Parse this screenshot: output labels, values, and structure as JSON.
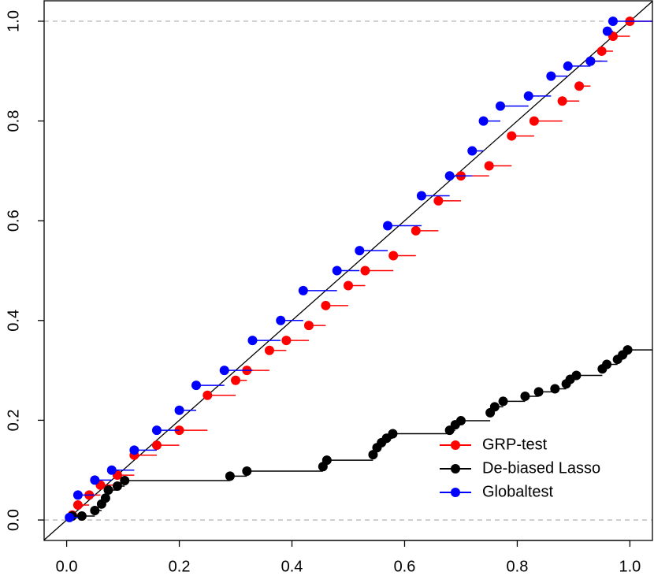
{
  "chart_data": {
    "type": "step",
    "xlim": [
      -0.04,
      1.04
    ],
    "ylim": [
      -0.041,
      1.041
    ],
    "xticks": [
      {
        "value": 0,
        "label": "0.0"
      },
      {
        "value": 0.2,
        "label": "0.2"
      },
      {
        "value": 0.4,
        "label": "0.4"
      },
      {
        "value": 0.6,
        "label": "0.6"
      },
      {
        "value": 0.8,
        "label": "0.8"
      },
      {
        "value": 1,
        "label": "1.0"
      }
    ],
    "yticks": [
      {
        "value": 0,
        "label": "0.0"
      },
      {
        "value": 0.2,
        "label": "0.2"
      },
      {
        "value": 0.4,
        "label": "0.4"
      },
      {
        "value": 0.6,
        "label": "0.6"
      },
      {
        "value": 0.8,
        "label": "0.8"
      },
      {
        "value": 1,
        "label": "1.0"
      }
    ],
    "legend": "bottom-right",
    "series": [
      {
        "name": "GRP-test",
        "color": "#ff0000",
        "x": [
          0.01,
          0.02,
          0.04,
          0.06,
          0.09,
          0.12,
          0.16,
          0.2,
          0.25,
          0.3,
          0.32,
          0.36,
          0.39,
          0.43,
          0.46,
          0.5,
          0.53,
          0.58,
          0.62,
          0.66,
          0.7,
          0.75,
          0.79,
          0.83,
          0.88,
          0.91,
          0.93,
          0.95,
          0.97,
          1.0
        ],
        "values": [
          0.01,
          0.03,
          0.05,
          0.07,
          0.09,
          0.13,
          0.15,
          0.18,
          0.25,
          0.28,
          0.3,
          0.34,
          0.36,
          0.39,
          0.43,
          0.47,
          0.5,
          0.53,
          0.58,
          0.64,
          0.69,
          0.71,
          0.77,
          0.8,
          0.84,
          0.87,
          0.92,
          0.94,
          0.97,
          1.0
        ]
      },
      {
        "name": "De-biased Lasso",
        "color": "#000000",
        "x": [
          0.01,
          0.027,
          0.05,
          0.062,
          0.069,
          0.074,
          0.09,
          0.103,
          0.29,
          0.32,
          0.455,
          0.462,
          0.544,
          0.551,
          0.559,
          0.568,
          0.579,
          0.68,
          0.69,
          0.7,
          0.752,
          0.76,
          0.775,
          0.814,
          0.838,
          0.867,
          0.887,
          0.894,
          0.905,
          0.951,
          0.959,
          0.978,
          0.987,
          0.996
        ],
        "values": [
          0.008,
          0.008,
          0.019,
          0.032,
          0.044,
          0.06,
          0.068,
          0.079,
          0.088,
          0.098,
          0.107,
          0.12,
          0.131,
          0.145,
          0.155,
          0.164,
          0.173,
          0.18,
          0.191,
          0.199,
          0.215,
          0.227,
          0.238,
          0.248,
          0.257,
          0.263,
          0.273,
          0.282,
          0.29,
          0.303,
          0.312,
          0.322,
          0.331,
          0.341
        ]
      },
      {
        "name": "Globaltest",
        "color": "#0000ff",
        "x": [
          0.005,
          0.02,
          0.05,
          0.08,
          0.12,
          0.16,
          0.2,
          0.23,
          0.28,
          0.33,
          0.38,
          0.42,
          0.48,
          0.52,
          0.57,
          0.63,
          0.68,
          0.72,
          0.74,
          0.77,
          0.82,
          0.86,
          0.89,
          0.93,
          0.96,
          0.97
        ],
        "values": [
          0.005,
          0.05,
          0.08,
          0.1,
          0.14,
          0.18,
          0.22,
          0.27,
          0.3,
          0.36,
          0.4,
          0.46,
          0.5,
          0.54,
          0.59,
          0.65,
          0.69,
          0.74,
          0.8,
          0.83,
          0.85,
          0.89,
          0.91,
          0.92,
          0.98,
          1.0
        ]
      }
    ]
  }
}
